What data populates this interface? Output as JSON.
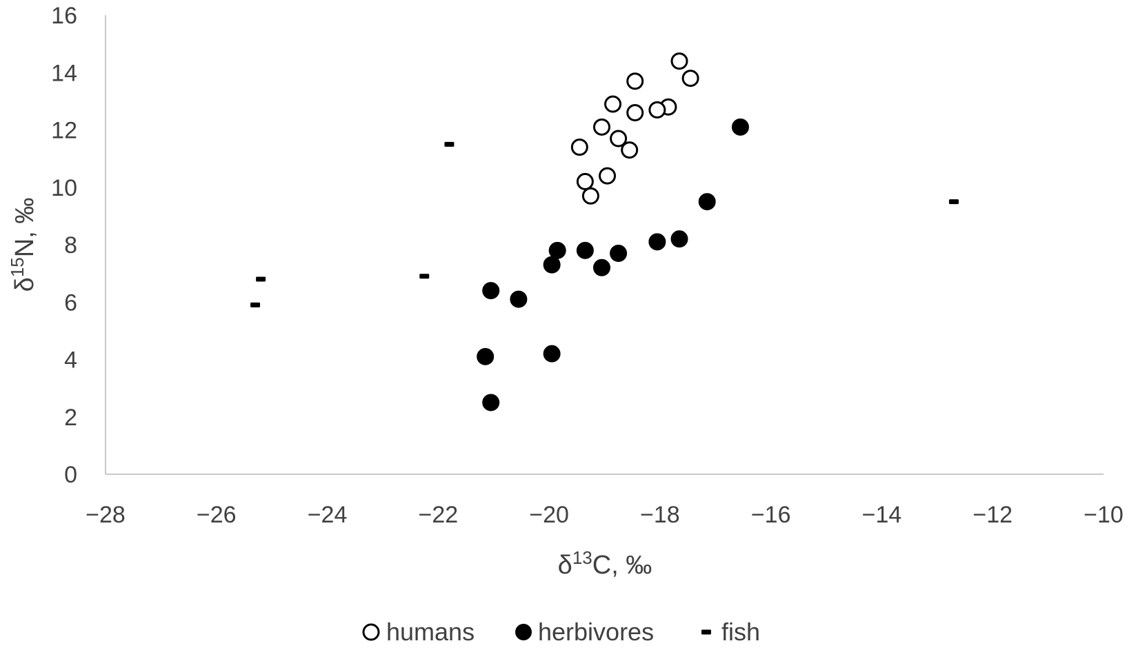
{
  "chart_data": {
    "type": "scatter",
    "title": "",
    "xlabel": {
      "base": "δ",
      "sup": "13",
      "rest": "C, ‰"
    },
    "ylabel": {
      "base": "δ",
      "sup": "15",
      "rest": "N, ‰"
    },
    "xlim": [
      -28,
      -10
    ],
    "ylim": [
      0,
      16
    ],
    "xticks": [
      -28,
      -26,
      -24,
      -22,
      -20,
      -18,
      -16,
      -14,
      -12,
      -10
    ],
    "yticks": [
      0,
      2,
      4,
      6,
      8,
      10,
      12,
      14,
      16
    ],
    "xtick_labels": [
      "−28",
      "−26",
      "−24",
      "−22",
      "−20",
      "−18",
      "−16",
      "−14",
      "−12",
      "−10"
    ],
    "ytick_labels": [
      "0",
      "2",
      "4",
      "6",
      "8",
      "10",
      "12",
      "14",
      "16"
    ],
    "grid": false,
    "legend_position": "bottom",
    "colors": {
      "marker": "#000000",
      "hollow_fill": "#ffffff",
      "axis": "#c8c8c8",
      "text": "#404040"
    },
    "series": [
      {
        "name": "humans",
        "marker": "open-circle",
        "points": [
          {
            "x": -17.65,
            "y": 14.4
          },
          {
            "x": -17.45,
            "y": 13.8
          },
          {
            "x": -18.45,
            "y": 13.7
          },
          {
            "x": -18.85,
            "y": 12.9
          },
          {
            "x": -17.85,
            "y": 12.8
          },
          {
            "x": -18.05,
            "y": 12.7
          },
          {
            "x": -18.45,
            "y": 12.6
          },
          {
            "x": -19.05,
            "y": 12.1
          },
          {
            "x": -18.75,
            "y": 11.7
          },
          {
            "x": -19.45,
            "y": 11.4
          },
          {
            "x": -18.55,
            "y": 11.3
          },
          {
            "x": -18.95,
            "y": 10.4
          },
          {
            "x": -19.35,
            "y": 10.2
          },
          {
            "x": -19.25,
            "y": 9.7
          }
        ]
      },
      {
        "name": "herbivores",
        "marker": "filled-circle",
        "points": [
          {
            "x": -16.55,
            "y": 12.1
          },
          {
            "x": -17.15,
            "y": 9.5
          },
          {
            "x": -17.65,
            "y": 8.2
          },
          {
            "x": -18.05,
            "y": 8.1
          },
          {
            "x": -19.85,
            "y": 7.8
          },
          {
            "x": -19.35,
            "y": 7.8
          },
          {
            "x": -18.75,
            "y": 7.7
          },
          {
            "x": -19.95,
            "y": 7.3
          },
          {
            "x": -19.05,
            "y": 7.2
          },
          {
            "x": -21.05,
            "y": 6.4
          },
          {
            "x": -20.55,
            "y": 6.1
          },
          {
            "x": -19.95,
            "y": 4.2
          },
          {
            "x": -21.15,
            "y": 4.1
          },
          {
            "x": -21.05,
            "y": 2.5
          }
        ]
      },
      {
        "name": "fish",
        "marker": "dash",
        "points": [
          {
            "x": -21.8,
            "y": 11.5
          },
          {
            "x": -12.7,
            "y": 9.5
          },
          {
            "x": -22.25,
            "y": 6.9
          },
          {
            "x": -25.2,
            "y": 6.8
          },
          {
            "x": -25.3,
            "y": 5.9
          }
        ]
      }
    ]
  }
}
